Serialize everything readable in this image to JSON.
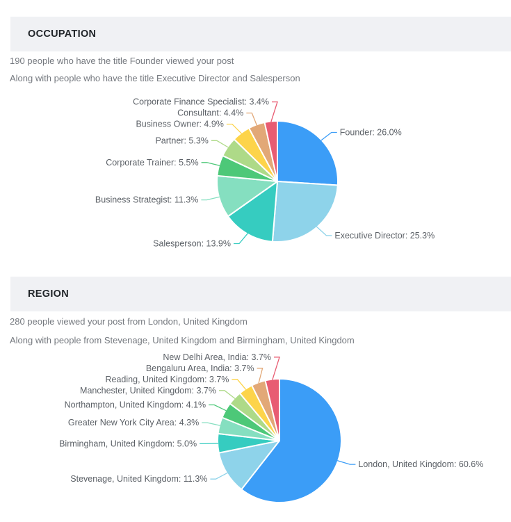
{
  "sections": {
    "occupation": {
      "title": "OCCUPATION",
      "line1": "190 people who have the title Founder viewed your post",
      "line2": "Along with people who have the title Executive Director and Salesperson"
    },
    "region": {
      "title": "REGION",
      "line1": "280 people viewed your post from London, United Kingdom",
      "line2": "Along with people from Stevenage, United Kingdom and Birmingham, United Kingdom"
    }
  },
  "chart_data": [
    {
      "type": "pie",
      "title": "OCCUPATION",
      "label_format": "{name}: {value}%",
      "start_angle": "12-oclock",
      "direction": "clockwise",
      "label_position": "outside",
      "slices": [
        {
          "name": "Founder",
          "value": 26.0,
          "color": "#3b9df7"
        },
        {
          "name": "Executive Director",
          "value": 25.3,
          "color": "#8ed3ea"
        },
        {
          "name": "Salesperson",
          "value": 13.9,
          "color": "#36ccc0"
        },
        {
          "name": "Business Strategist",
          "value": 11.3,
          "color": "#85dfc0"
        },
        {
          "name": "Corporate Trainer",
          "value": 5.5,
          "color": "#4dc878"
        },
        {
          "name": "Partner",
          "value": 5.3,
          "color": "#aeda88"
        },
        {
          "name": "Business Owner",
          "value": 4.9,
          "color": "#fdd44a"
        },
        {
          "name": "Consultant",
          "value": 4.4,
          "color": "#e2a877"
        },
        {
          "name": "Corporate Finance Specialist",
          "value": 3.4,
          "color": "#e85c72"
        }
      ]
    },
    {
      "type": "pie",
      "title": "REGION",
      "label_format": "{name}: {value}%",
      "start_angle": "12-oclock",
      "direction": "clockwise",
      "label_position": "outside",
      "slices": [
        {
          "name": "London, United Kingdom",
          "value": 60.6,
          "color": "#3b9df7"
        },
        {
          "name": "Stevenage, United Kingdom",
          "value": 11.3,
          "color": "#8ed3ea"
        },
        {
          "name": "Birmingham, United Kingdom",
          "value": 5.0,
          "color": "#36ccc0"
        },
        {
          "name": "Greater New York City Area",
          "value": 4.3,
          "color": "#85dfc0"
        },
        {
          "name": "Northampton, United Kingdom",
          "value": 4.1,
          "color": "#4dc878"
        },
        {
          "name": "Manchester, United Kingdom",
          "value": 3.7,
          "color": "#aeda88"
        },
        {
          "name": "Reading, United Kingdom",
          "value": 3.7,
          "color": "#fdd44a"
        },
        {
          "name": "Bengaluru Area, India",
          "value": 3.7,
          "color": "#e2a877"
        },
        {
          "name": "New Delhi Area, India",
          "value": 3.7,
          "color": "#e85c72"
        }
      ]
    }
  ],
  "colors": {
    "section_header_bg": "#f0f1f4",
    "section_title_text": "#212529",
    "intro_text": "#75797f",
    "pie_label_text": "#5c6167",
    "slice_border": "#ffffff"
  }
}
